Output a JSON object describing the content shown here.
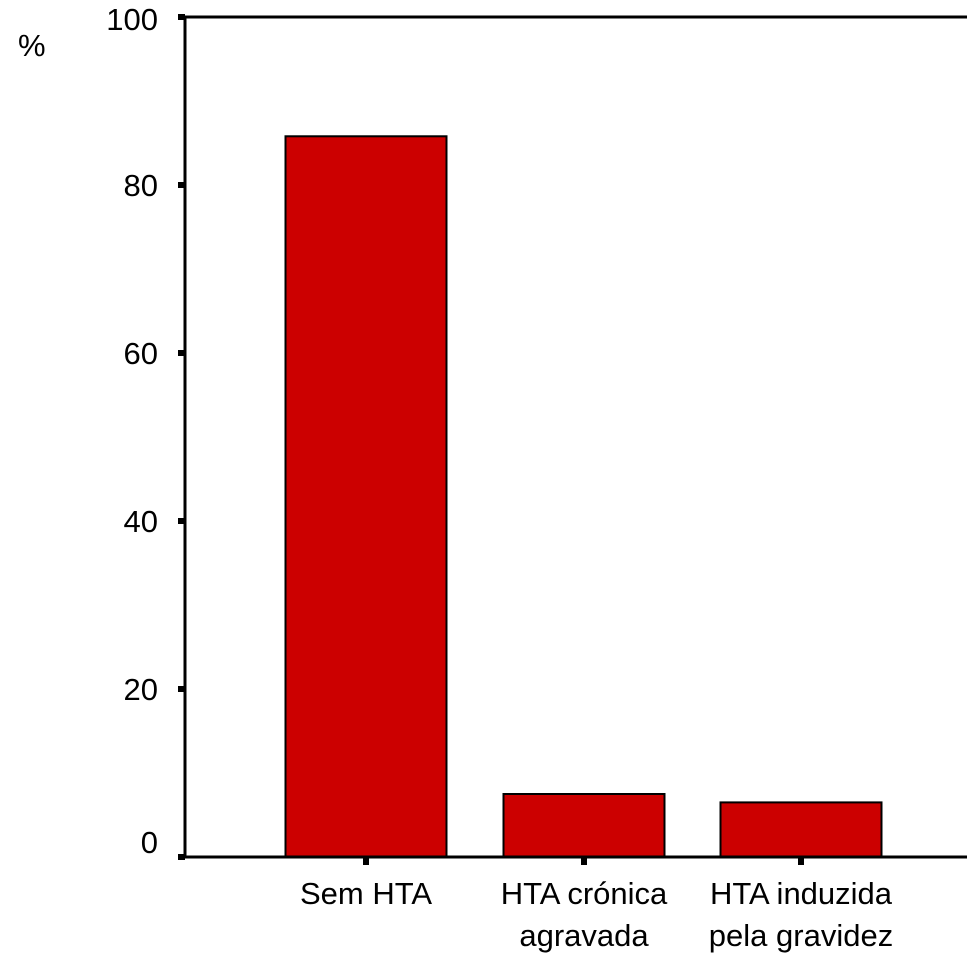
{
  "chart_data": {
    "type": "bar",
    "categories": [
      [
        "Sem HTA"
      ],
      [
        "HTA crónica",
        "agravada"
      ],
      [
        "HTA induzida",
        "pela gravidez"
      ]
    ],
    "values": [
      85.8,
      7.5,
      6.5
    ],
    "ylabel": "%",
    "xlabel": "",
    "title": "",
    "ylim": [
      0,
      100
    ],
    "yticks": [
      0,
      20,
      40,
      60,
      80,
      100
    ],
    "grid": false,
    "legend": "none",
    "bar_color": "#cc0000",
    "outline_color": "#000000"
  }
}
